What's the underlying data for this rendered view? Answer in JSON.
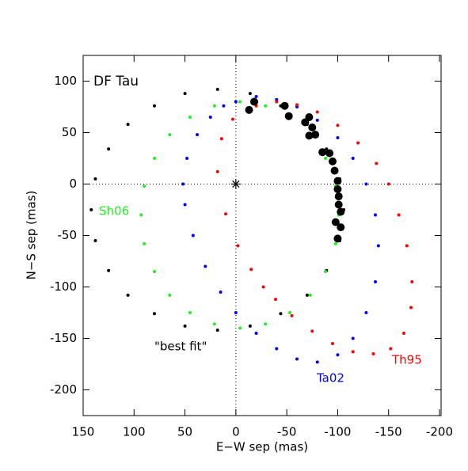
{
  "chart_data": {
    "type": "scatter",
    "title": "DF Tau",
    "xlabel": "E−W sep (mas)",
    "ylabel": "N−S sep (mas)",
    "xlim": [
      150,
      -200
    ],
    "ylim": [
      -225,
      125
    ],
    "xticks": [
      150,
      100,
      50,
      0,
      -50,
      -100,
      -150,
      -200
    ],
    "yticks": [
      -200,
      -150,
      -100,
      -50,
      0,
      50,
      100
    ],
    "primary": {
      "x": 0,
      "y": 0
    },
    "series": [
      {
        "name": "\"best fit\"",
        "color": "#000000",
        "x": [
          142,
          138,
          125,
          106,
          80,
          50,
          18,
          -14,
          -44,
          -70,
          -89,
          -102,
          -106,
          -102,
          -89,
          -70,
          -44,
          -14,
          18,
          50,
          80,
          106,
          125,
          138
        ],
        "y": [
          -25,
          5,
          34,
          58,
          76,
          88,
          92,
          88,
          76,
          58,
          34,
          5,
          -25,
          -55,
          -84,
          -108,
          -126,
          -138,
          -142,
          -138,
          -126,
          -108,
          -84,
          -55
        ]
      },
      {
        "name": "Sh06",
        "color": "#22ee22",
        "x": [
          93,
          90,
          80,
          65,
          45,
          21,
          -4,
          -29,
          -53,
          -73,
          -88,
          -98,
          -101,
          -98,
          -88,
          -73,
          -53,
          -29,
          -4,
          21,
          45,
          65,
          80,
          90
        ],
        "y": [
          -30,
          -2,
          25,
          48,
          65,
          76,
          80,
          76,
          65,
          48,
          25,
          -2,
          -30,
          -58,
          -85,
          -108,
          -125,
          -136,
          -140,
          -136,
          -125,
          -108,
          -85,
          -58
        ]
      },
      {
        "name": "Ta02",
        "color": "#0000ff",
        "x": [
          0,
          -20,
          -40,
          -60,
          -80,
          -100,
          -115,
          -128,
          -137,
          -140,
          -137,
          -128,
          -115,
          -100,
          -80,
          -60,
          -40,
          -20,
          0,
          15,
          30,
          42,
          50,
          52,
          48,
          38,
          25,
          12
        ],
        "y": [
          80,
          85,
          82,
          75,
          62,
          45,
          25,
          0,
          -30,
          -60,
          -95,
          -125,
          -150,
          -166,
          -173,
          -170,
          -160,
          -145,
          -125,
          -105,
          -80,
          -50,
          -20,
          0,
          25,
          48,
          65,
          76
        ]
      },
      {
        "name": "Th95",
        "color": "#ff0000",
        "x": [
          3,
          14,
          18,
          10,
          -2,
          -15,
          -27,
          -39,
          -55,
          -75,
          -95,
          -115,
          -135,
          -152,
          -165,
          -172,
          -173,
          -168,
          -160,
          -150,
          -138,
          -120,
          -100,
          -80,
          -60,
          -40,
          -20
        ],
        "y": [
          63,
          44,
          12,
          -29,
          -60,
          -83,
          -100,
          -112,
          -128,
          -143,
          -155,
          -163,
          -165,
          -160,
          -145,
          -120,
          -95,
          -60,
          -30,
          0,
          20,
          40,
          57,
          70,
          77,
          80,
          76
        ]
      }
    ],
    "observed": {
      "color": "#000000",
      "x": [
        -13,
        -18,
        -48,
        -52,
        -68,
        -72,
        -75,
        -72,
        -78,
        -85,
        -92,
        -95,
        -97,
        -100,
        -100,
        -101,
        -101,
        -103,
        -98,
        -103,
        -100
      ],
      "y": [
        72,
        80,
        76,
        66,
        60,
        65,
        55,
        47,
        48,
        31,
        30,
        22,
        13,
        3,
        -5,
        -12,
        -20,
        -27,
        -37,
        -42,
        -53
      ]
    }
  }
}
